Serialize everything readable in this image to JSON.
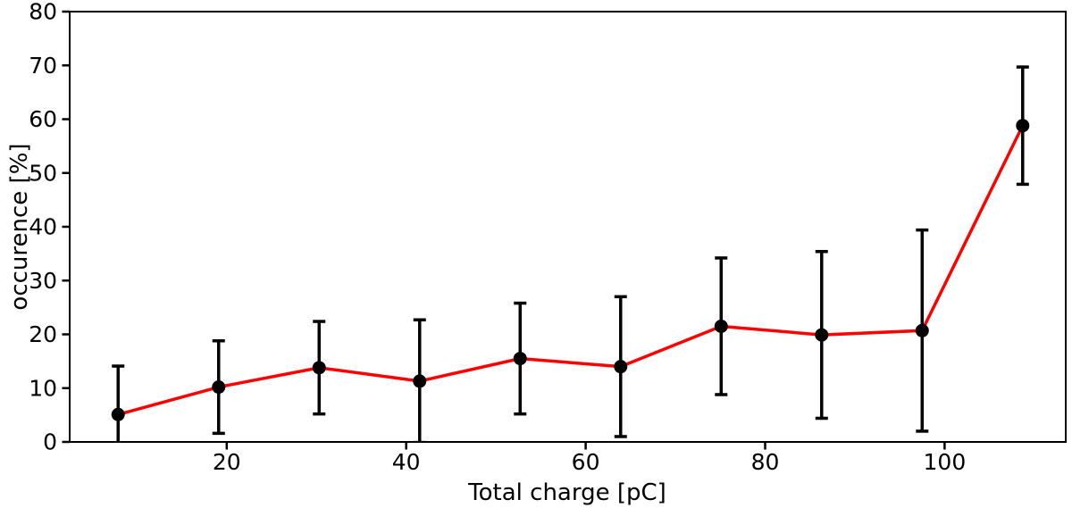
{
  "chart_data": {
    "type": "line",
    "title": "",
    "xlabel": "Total charge [pC]",
    "ylabel": "occurence [%]",
    "x": [
      7.9,
      19.1,
      30.3,
      41.5,
      52.7,
      63.9,
      75.1,
      86.3,
      97.5,
      108.7
    ],
    "y": [
      5.1,
      10.2,
      13.8,
      11.3,
      15.5,
      14.0,
      21.5,
      19.9,
      20.7,
      58.8
    ],
    "yerr": [
      9.0,
      8.6,
      8.6,
      11.4,
      10.3,
      13.0,
      12.7,
      15.5,
      18.7,
      10.9
    ],
    "xlim": [
      2.5,
      113.5
    ],
    "ylim": [
      0,
      80
    ],
    "xticks": [
      20,
      40,
      60,
      80,
      100
    ],
    "yticks": [
      0,
      10,
      20,
      30,
      40,
      50,
      60,
      70,
      80
    ],
    "grid": false,
    "legend": null,
    "colors": {
      "line": "#ff0000",
      "marker": "#000000",
      "errorbar": "#000000",
      "frame": "#000000",
      "background": "#ffffff"
    }
  }
}
